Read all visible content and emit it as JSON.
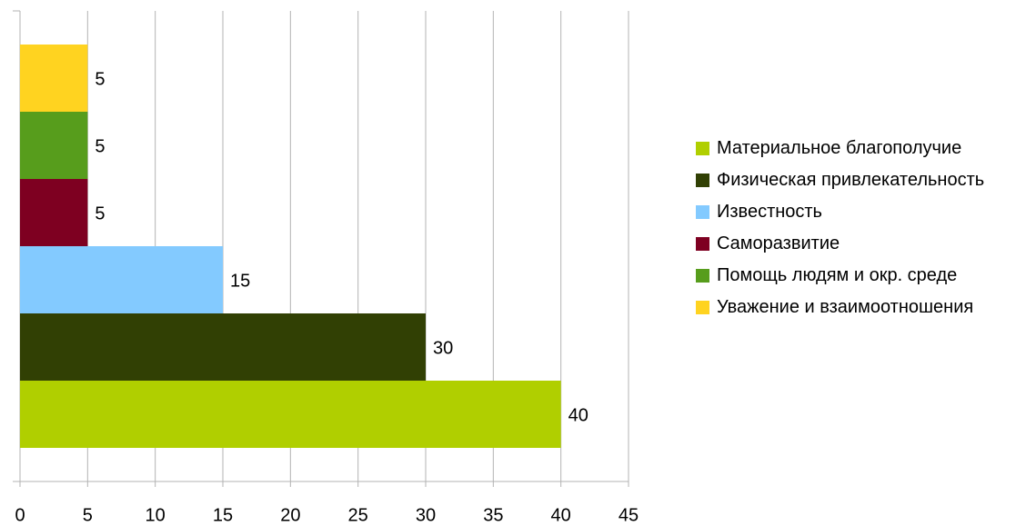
{
  "chart_data": {
    "type": "bar",
    "orientation": "horizontal",
    "series": [
      {
        "name": "Материальное благополучие",
        "color": "#b0cf00",
        "values": [
          40
        ]
      },
      {
        "name": "Физическая привлекательность",
        "color": "#314004",
        "values": [
          30
        ]
      },
      {
        "name": "Известность",
        "color": "#83caff",
        "values": [
          15
        ]
      },
      {
        "name": "Саморазвитие",
        "color": "#7e0021",
        "values": [
          5
        ]
      },
      {
        "name": "Помощь людям и окр. среде",
        "color": "#579d1c",
        "values": [
          5
        ]
      },
      {
        "name": "Уважение и взаимоотношения",
        "color": "#ffd320",
        "values": [
          5
        ]
      }
    ],
    "xlim": [
      0,
      45
    ],
    "xticks": [
      0,
      5,
      10,
      15,
      20,
      25,
      30,
      35,
      40,
      45
    ],
    "grid": true,
    "legend": "right"
  }
}
